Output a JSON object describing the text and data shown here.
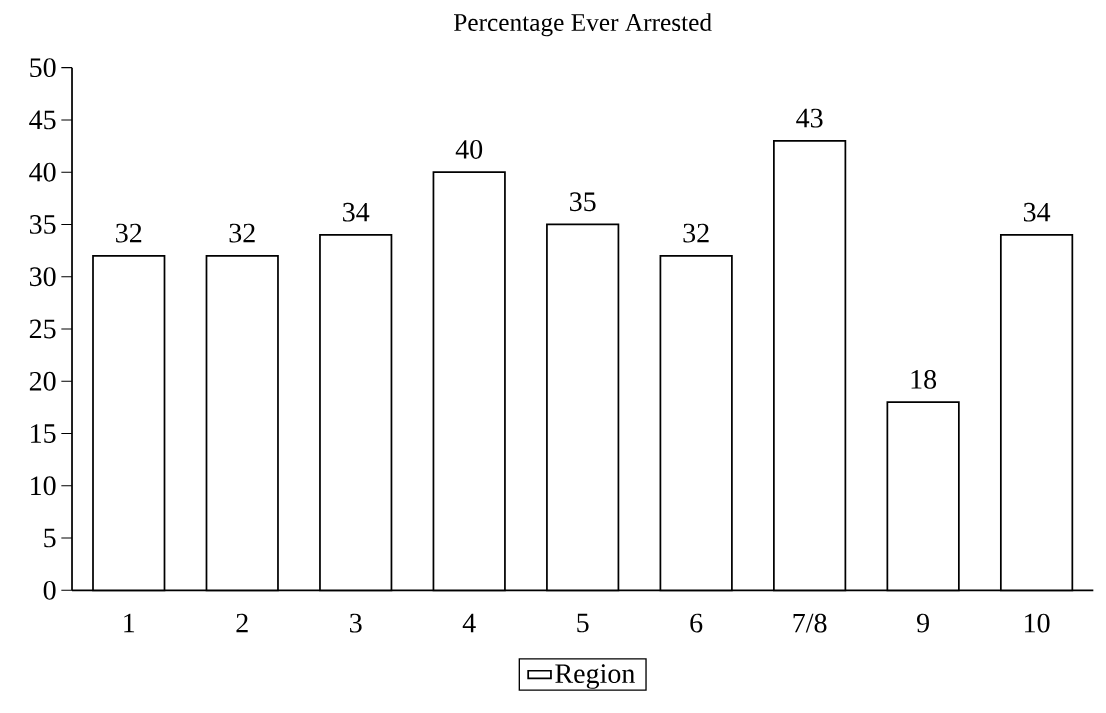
{
  "chart_data": {
    "type": "bar",
    "title": "Percentage Ever Arrested",
    "categories": [
      "1",
      "2",
      "3",
      "4",
      "5",
      "6",
      "7/8",
      "9",
      "10"
    ],
    "series": [
      {
        "name": "Region",
        "color": "#000000",
        "values": [
          32,
          32,
          34,
          40,
          35,
          32,
          43,
          18,
          34
        ]
      }
    ],
    "ylim": [
      0,
      50
    ],
    "yticks": [
      0,
      5,
      10,
      15,
      20,
      25,
      30,
      35,
      40,
      45,
      50
    ],
    "data_labels": true,
    "legend": "bottom",
    "grid": false
  }
}
